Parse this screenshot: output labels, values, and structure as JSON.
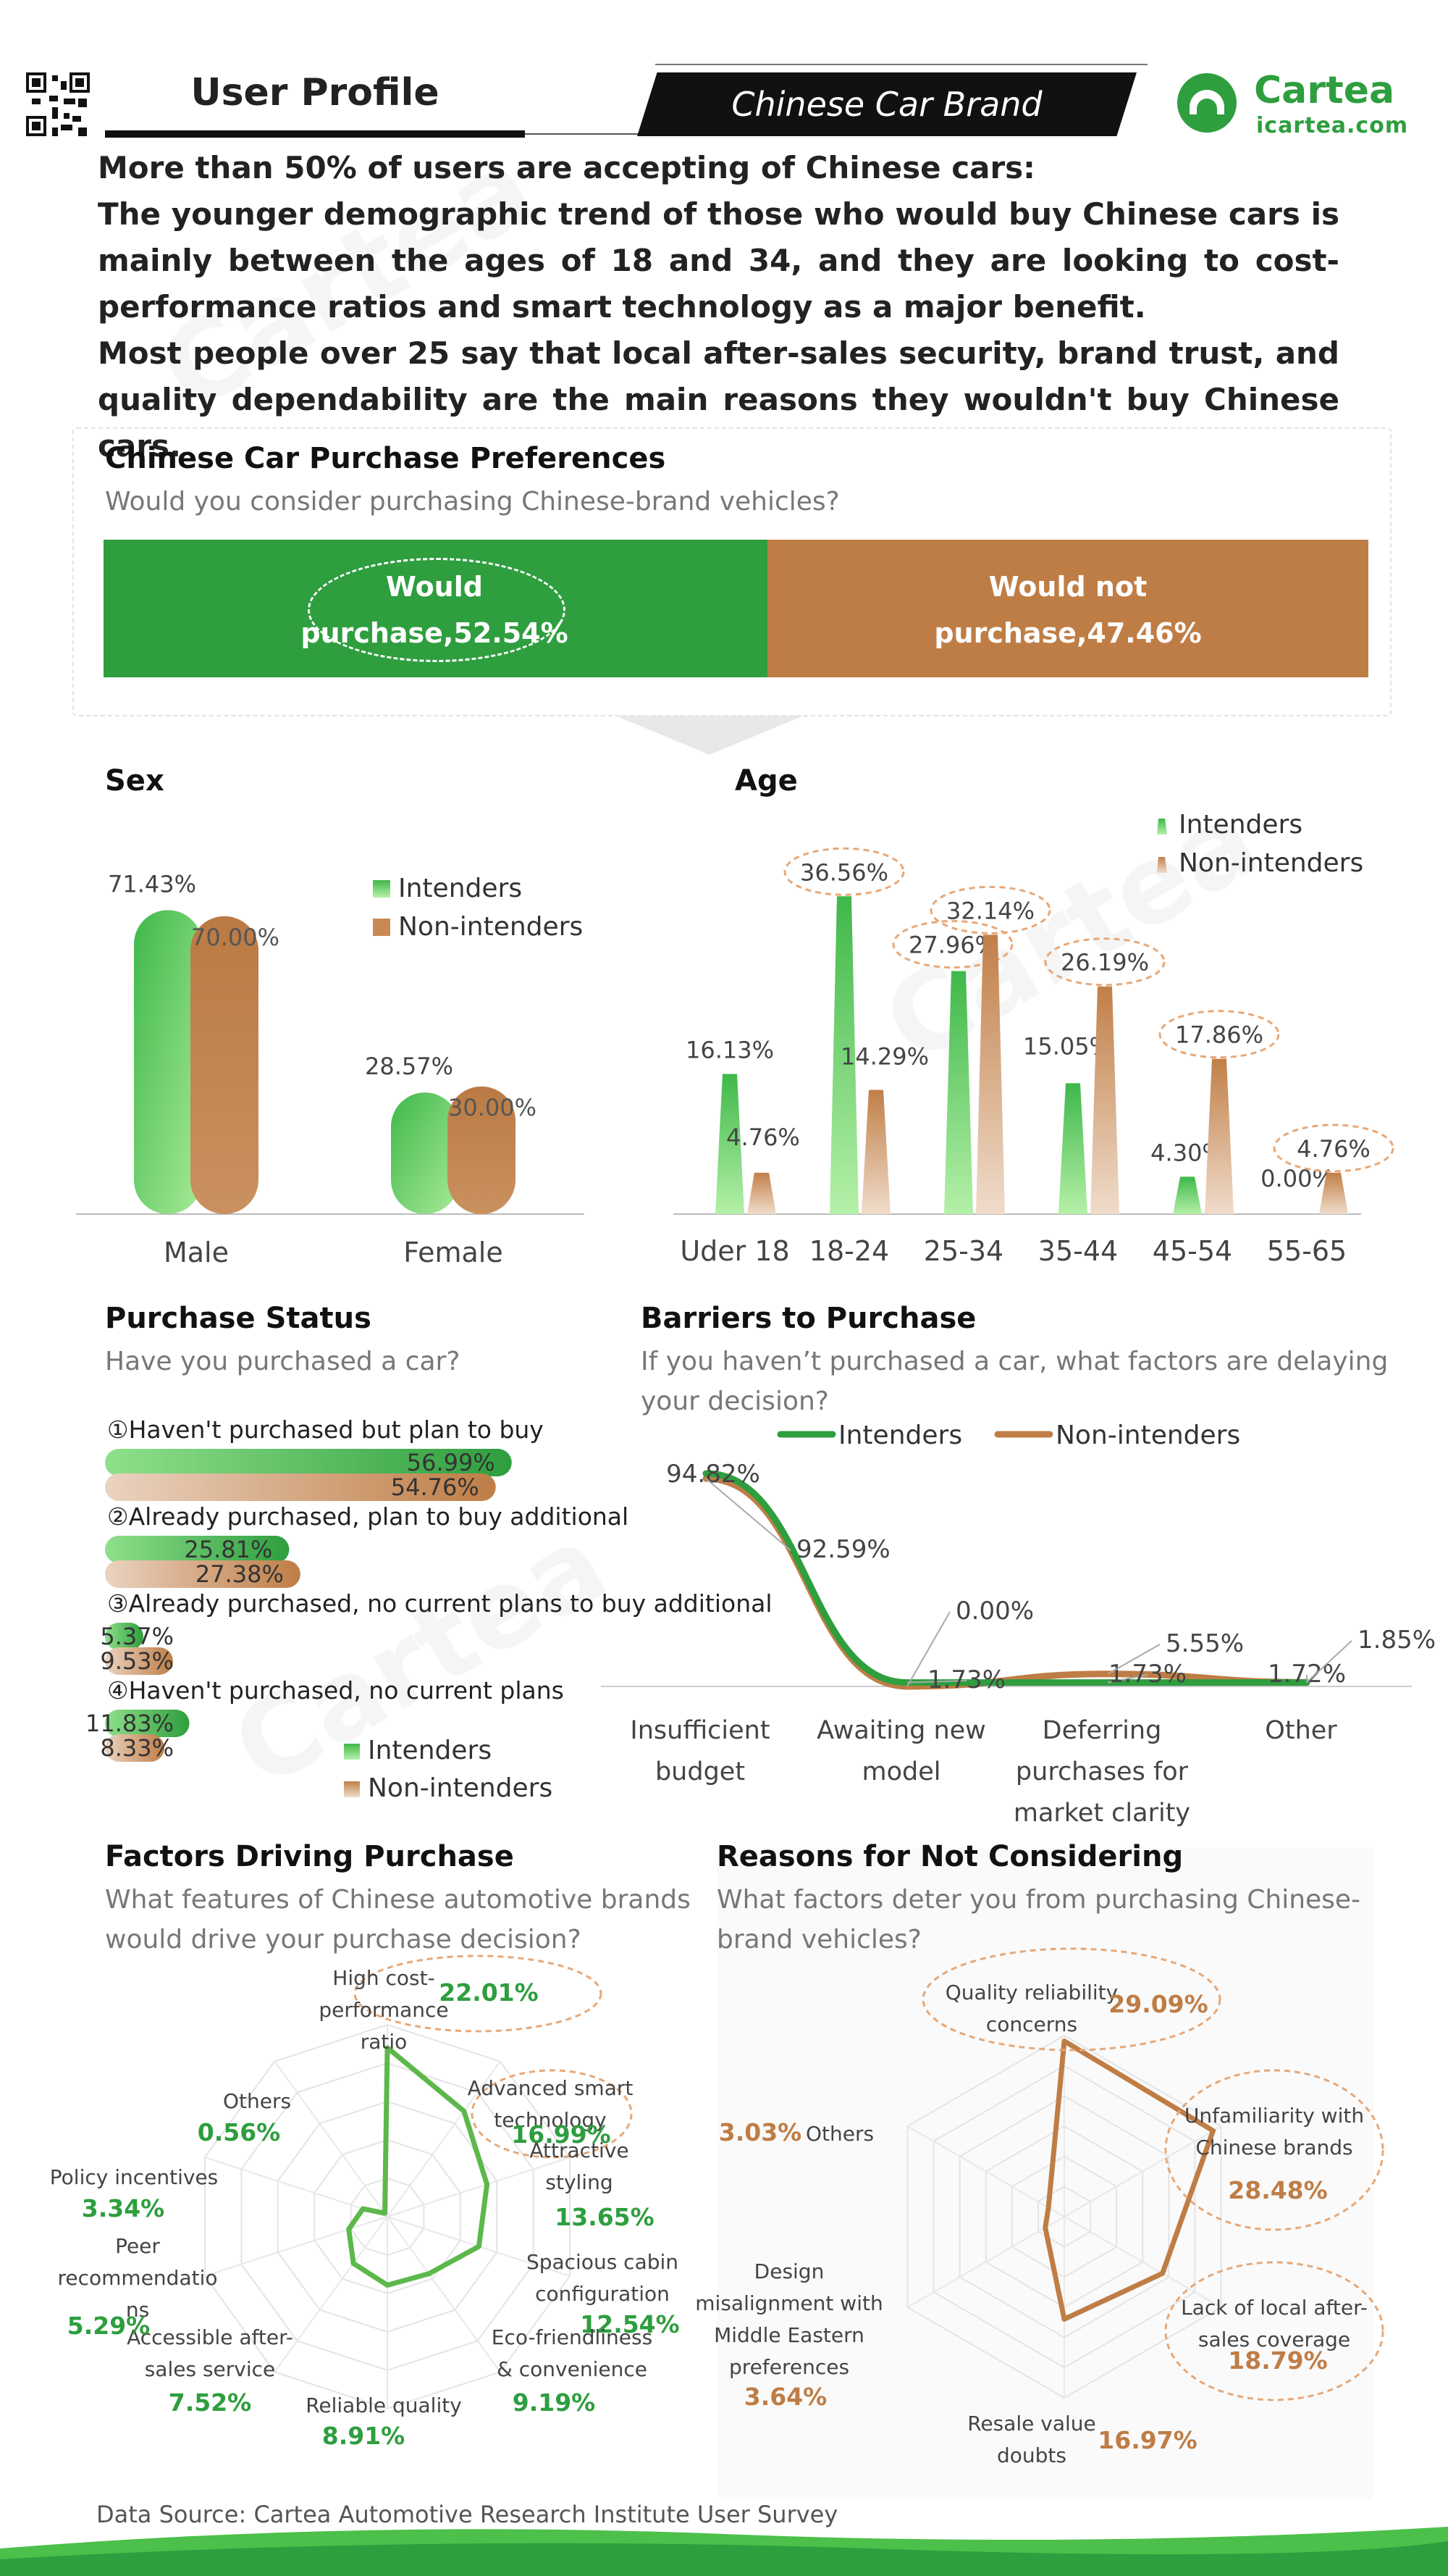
{
  "header": {
    "title": "User Profile",
    "banner": "Chinese Car Brand",
    "logo_name": "Cartea",
    "logo_url": "icartea.com"
  },
  "summary": [
    "More than 50% of users are accepting of Chinese cars:",
    "The younger demographic trend of those who would buy Chinese cars is mainly between the ages of 18 and 34, and they are looking to cost-performance ratios and smart technology as a major benefit.",
    "Most people over 25 say that local after-sales security, brand trust, and quality dependability are the main reasons they wouldn't buy Chinese cars."
  ],
  "colors": {
    "green": "#2e9e3e",
    "brown": "#bf7d46",
    "light_green": "#8fe08a",
    "light_brown": "#ead3c0"
  },
  "preferences": {
    "title": "Chinese Car Purchase Preferences",
    "subtitle": "Would you consider purchasing Chinese-brand vehicles?",
    "yes_line1": "Would",
    "yes_line2": "purchase,52.54%",
    "no_line1": "Would not",
    "no_line2": "purchase,47.46%"
  },
  "legend": {
    "intenders": "Intenders",
    "non_intenders": "Non-intenders"
  },
  "sex": {
    "title": "Sex"
  },
  "age": {
    "title": "Age"
  },
  "purchase_status": {
    "title": "Purchase Status",
    "subtitle": "Have you purchased a car?",
    "items": [
      {
        "label": "①Haven't purchased but plan to buy",
        "int_label": "56.99%",
        "non_label": "54.76%"
      },
      {
        "label": "②Already purchased, plan to buy additional",
        "int_label": "25.81%",
        "non_label": "27.38%"
      },
      {
        "label": "③Already purchased, no current plans to buy additional",
        "int_label": "5.37%",
        "non_label": "9.53%"
      },
      {
        "label": "④Haven't purchased, no current plans",
        "int_label": "11.83%",
        "non_label": "8.33%"
      }
    ]
  },
  "barriers": {
    "title": "Barriers to Purchase",
    "subtitle_line1": "If you haven’t purchased a car, what factors are delaying",
    "subtitle_line2": "your decision?",
    "cat_labels": [
      [
        "Insufficient",
        "budget"
      ],
      [
        "Awaiting new",
        "model"
      ],
      [
        "Deferring",
        "purchases for",
        "market clarity"
      ],
      [
        "Other"
      ]
    ]
  },
  "factors": {
    "title": "Factors Driving Purchase",
    "subtitle_line1": "What features of Chinese automotive brands",
    "subtitle_line2": "would drive your purchase decision?",
    "items": [
      {
        "label": [
          "High cost-",
          "performance",
          "ratio"
        ],
        "value": "22.01%"
      },
      {
        "label": [
          "Advanced smart",
          "technology"
        ],
        "value": "16.99%"
      },
      {
        "label": [
          "Attractive",
          "styling"
        ],
        "value": "13.65%"
      },
      {
        "label": [
          "Spacious cabin",
          "configuration"
        ],
        "value": "12.54%"
      },
      {
        "label": [
          "Eco-friendliness",
          "& convenience"
        ],
        "value": "9.19%"
      },
      {
        "label": [
          "Reliable quality"
        ],
        "value": "8.91%"
      },
      {
        "label": [
          "Accessible after-",
          "sales service"
        ],
        "value": "7.52%"
      },
      {
        "label": [
          "Peer",
          "recommendatio",
          "ns"
        ],
        "value": "5.29%"
      },
      {
        "label": [
          "Policy incentives"
        ],
        "value": "3.34%"
      },
      {
        "label": [
          "Others"
        ],
        "value": "0.56%"
      }
    ]
  },
  "reasons": {
    "title": "Reasons for Not Considering",
    "subtitle_line1": "What factors deter you from purchasing Chinese-",
    "subtitle_line2": "brand vehicles?",
    "items": [
      {
        "label": [
          "Quality reliability",
          "concerns"
        ],
        "value": "29.09%"
      },
      {
        "label": [
          "Unfamiliarity with",
          "Chinese brands"
        ],
        "value": "28.48%"
      },
      {
        "label": [
          "Lack of local after-",
          "sales coverage"
        ],
        "value": "18.79%"
      },
      {
        "label": [
          "Resale value",
          "doubts"
        ],
        "value": "16.97%"
      },
      {
        "label": [
          "Design",
          "misalignment with",
          "Middle Eastern",
          "preferences"
        ],
        "value": "3.64%"
      },
      {
        "label": [
          "Others"
        ],
        "value": "3.03%"
      }
    ]
  },
  "footer": {
    "source": "Data Source: Cartea Automotive Research Institute User Survey"
  },
  "chart_data": [
    {
      "type": "bar",
      "title": "Sex",
      "categories": [
        "Male",
        "Female"
      ],
      "series": [
        {
          "name": "Intenders",
          "values": [
            71.43,
            28.57
          ],
          "labels": [
            "71.43%",
            "28.57%"
          ]
        },
        {
          "name": "Non-intenders",
          "values": [
            70.0,
            30.0
          ],
          "labels": [
            "70.00%",
            "30.00%"
          ]
        }
      ],
      "ylim": [
        0,
        80
      ]
    },
    {
      "type": "bar",
      "title": "Age",
      "categories": [
        "Uder 18",
        "18-24",
        "25-34",
        "35-44",
        "45-54",
        "55-65"
      ],
      "series": [
        {
          "name": "Intenders",
          "values": [
            16.13,
            36.56,
            27.96,
            15.05,
            4.3,
            0.0
          ],
          "labels": [
            "16.13%",
            "36.56%",
            "27.96%",
            "15.05%",
            "4.30%",
            "0.00%"
          ]
        },
        {
          "name": "Non-intenders",
          "values": [
            4.76,
            14.29,
            32.14,
            26.19,
            17.86,
            4.76
          ],
          "labels": [
            "4.76%",
            "14.29%",
            "32.14%",
            "26.19%",
            "17.86%",
            "4.76%"
          ]
        }
      ],
      "ylim": [
        0,
        40
      ]
    },
    {
      "type": "bar",
      "title": "Purchase Status",
      "categories": [
        "①Haven't purchased but plan to buy",
        "②Already purchased, plan to buy additional",
        "③Already purchased, no current plans to buy additional",
        "④Haven't purchased, no current plans"
      ],
      "series": [
        {
          "name": "Intenders",
          "values": [
            56.99,
            25.81,
            5.37,
            11.83
          ]
        },
        {
          "name": "Non-intenders",
          "values": [
            54.76,
            27.38,
            9.53,
            8.33
          ]
        }
      ],
      "xlim": [
        0,
        70
      ]
    },
    {
      "type": "line",
      "title": "Barriers to Purchase",
      "categories": [
        "Insufficient budget",
        "Awaiting new model",
        "Deferring purchases for market clarity",
        "Other"
      ],
      "series": [
        {
          "name": "Intenders",
          "values": [
            94.82,
            1.73,
            1.73,
            1.72
          ],
          "labels": [
            "94.82%",
            "1.73%",
            "1.73%",
            "1.72%"
          ]
        },
        {
          "name": "Non-intenders",
          "values": [
            92.59,
            0.0,
            5.55,
            1.85
          ],
          "labels": [
            "92.59%",
            "0.00%",
            "5.55%",
            "1.85%"
          ]
        }
      ],
      "ylim": [
        0,
        100
      ]
    },
    {
      "type": "radar",
      "title": "Factors Driving Purchase",
      "categories": [
        "High cost-performance ratio",
        "Advanced smart technology",
        "Attractive styling",
        "Spacious cabin configuration",
        "Eco-friendliness & convenience",
        "Reliable quality",
        "Accessible after-sales service",
        "Peer recommendations",
        "Policy incentives",
        "Others"
      ],
      "values": [
        22.01,
        16.99,
        13.65,
        12.54,
        9.19,
        8.91,
        7.52,
        5.29,
        3.34,
        0.56
      ],
      "rmax": 25
    },
    {
      "type": "radar",
      "title": "Reasons for Not Considering",
      "categories": [
        "Quality reliability concerns",
        "Unfamiliarity with Chinese brands",
        "Lack of local after-sales coverage",
        "Resale value doubts",
        "Design misalignment with Middle Eastern preferences",
        "Others"
      ],
      "values": [
        29.09,
        28.48,
        18.79,
        16.97,
        3.64,
        3.03
      ],
      "rmax": 30
    }
  ]
}
